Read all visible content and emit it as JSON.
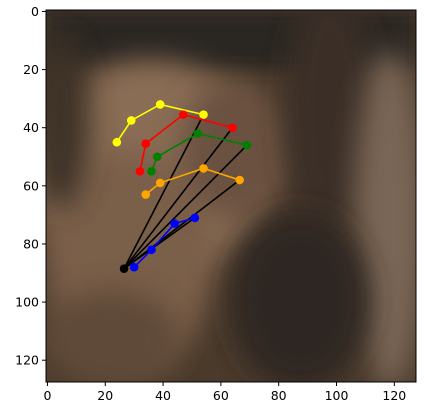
{
  "chart_data": {
    "type": "scatter",
    "title": "",
    "xlabel": "",
    "ylabel": "",
    "xlim": [
      -0.5,
      127.5
    ],
    "ylim": [
      127.5,
      -0.5
    ],
    "y_inverted": true,
    "x_ticks": [
      0,
      20,
      40,
      60,
      80,
      100,
      120
    ],
    "x_tick_labels": [
      "0",
      "20",
      "40",
      "60",
      "80",
      "100",
      "120"
    ],
    "y_ticks": [
      0,
      20,
      40,
      60,
      80,
      100,
      120
    ],
    "y_tick_labels": [
      "0",
      "20",
      "40",
      "60",
      "80",
      "100",
      "120"
    ],
    "background": {
      "kind": "image",
      "width": 128,
      "height": 128,
      "subject": "blurry close-up of a hand in brownish tones"
    },
    "wrist": {
      "x": 26.5,
      "y": 88.5
    },
    "fingers": [
      {
        "color": "#ffff00",
        "points": [
          [
            24,
            45
          ],
          [
            29,
            37.5
          ],
          [
            39,
            32
          ],
          [
            54,
            35.5
          ]
        ]
      },
      {
        "color": "#ff0000",
        "points": [
          [
            32,
            55
          ],
          [
            34,
            45.5
          ],
          [
            47,
            35.5
          ],
          [
            64,
            40
          ]
        ]
      },
      {
        "color": "#008000",
        "points": [
          [
            36,
            55
          ],
          [
            38,
            50
          ],
          [
            52,
            42
          ],
          [
            69,
            46
          ]
        ]
      },
      {
        "color": "#ffa500",
        "points": [
          [
            34,
            63
          ],
          [
            39,
            59
          ],
          [
            54,
            54
          ],
          [
            66.5,
            58
          ]
        ]
      },
      {
        "color": "#0000ff",
        "points": [
          [
            30,
            88
          ],
          [
            36,
            82
          ],
          [
            44,
            73
          ],
          [
            51,
            71
          ]
        ]
      }
    ],
    "wrist_links": [
      [
        54,
        35.5
      ],
      [
        64,
        40
      ],
      [
        69,
        46
      ],
      [
        66.5,
        58
      ],
      [
        51,
        71
      ]
    ],
    "wrist_color": "#000000"
  }
}
